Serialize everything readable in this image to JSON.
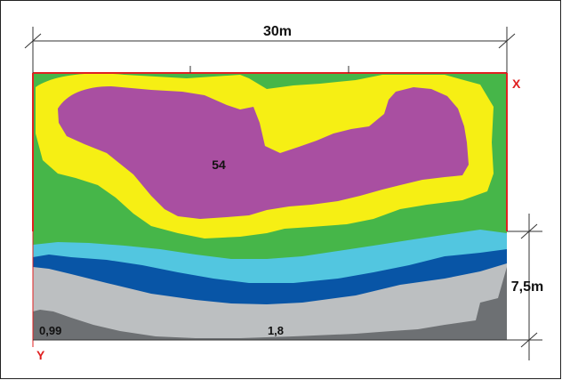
{
  "dimensions": {
    "width_label": "30m",
    "height_label": "7,5m"
  },
  "axes": {
    "x_label": "X",
    "y_label": "Y"
  },
  "values": {
    "center": "54",
    "bottom_left": "0,99",
    "bottom_center": "1,8"
  },
  "colors": {
    "magenta": "#a94fa1",
    "yellow": "#f6ef14",
    "green": "#46b649",
    "cyan": "#52c6e0",
    "blue": "#0855a6",
    "light_gray": "#bcbfc1",
    "dark_gray": "#6d7073",
    "axis_red": "#e02020",
    "dim_line": "#333333"
  }
}
